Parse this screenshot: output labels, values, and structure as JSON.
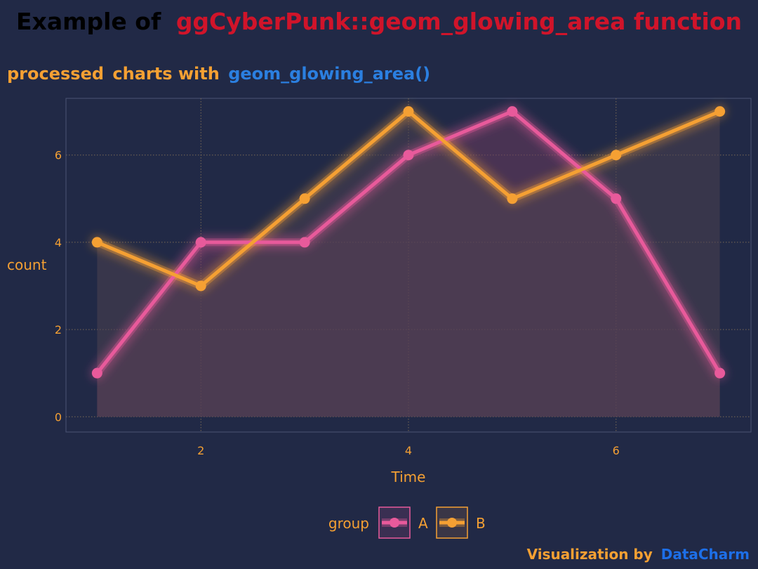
{
  "title": {
    "part1": "Example of",
    "part2": "ggCyberPunk::geom_glowing_area function"
  },
  "subtitle": {
    "part1": "processed",
    "part2": "charts with",
    "part3": "geom_glowing_area()"
  },
  "caption": {
    "part1": "Visualization by",
    "part2": "DataCharm"
  },
  "colors": {
    "background": "#212946",
    "title_black": "#000000",
    "title_red": "#d0142a",
    "orange": "#f5a033",
    "blue": "#2b7fe0",
    "caption_blue": "#1d6fe8",
    "series_A": "#e85a9b",
    "series_B": "#f5a033",
    "grid": "#7a6a55",
    "panel_border": "#4a5474",
    "area_fill": "#5a3e55"
  },
  "chart_data": {
    "type": "line",
    "xlabel": "Time",
    "ylabel": "count",
    "x": [
      1,
      2,
      3,
      4,
      5,
      6,
      7
    ],
    "xlim": [
      0.7,
      7.3
    ],
    "ylim": [
      -0.35,
      7.3
    ],
    "x_ticks": [
      2,
      4,
      6
    ],
    "y_ticks": [
      0,
      2,
      4,
      6
    ],
    "grid": true,
    "legend_title": "group",
    "legend_position": "bottom",
    "series": [
      {
        "name": "A",
        "values": [
          1,
          4,
          4,
          6,
          7,
          5,
          1
        ],
        "color": "#e85a9b"
      },
      {
        "name": "B",
        "values": [
          4,
          3,
          5,
          7,
          5,
          6,
          7
        ],
        "color": "#f5a033"
      }
    ]
  }
}
